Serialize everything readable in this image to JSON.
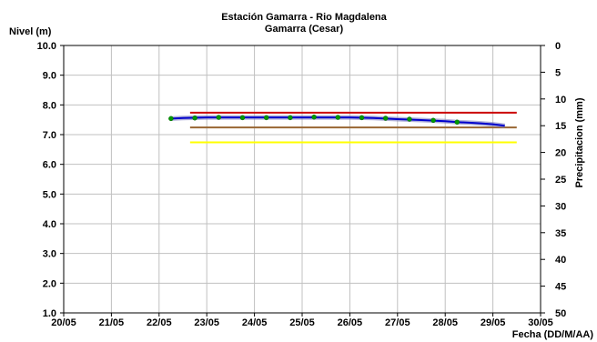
{
  "chart_data": {
    "type": "line",
    "title": "Estación Gamarra - Rio Magdalena",
    "subtitle": "Gamarra (Cesar)",
    "ylabel": "Nivel (m)",
    "y2label": "Precipitacion (mm)",
    "xlabel": "Fecha (DD/M/AA)",
    "x_ticks": [
      "20/05",
      "21/05",
      "22/05",
      "23/05",
      "24/05",
      "25/05",
      "26/05",
      "27/05",
      "28/05",
      "29/05",
      "30/05"
    ],
    "y_ticks": [
      "1.0",
      "2.0",
      "3.0",
      "4.0",
      "5.0",
      "6.0",
      "7.0",
      "8.0",
      "9.0",
      "10.0"
    ],
    "y2_ticks": [
      "0",
      "5",
      "10",
      "15",
      "20",
      "25",
      "30",
      "35",
      "40",
      "45",
      "50"
    ],
    "xlim": [
      0,
      10
    ],
    "ylim": [
      1.0,
      10.0
    ],
    "y2lim": [
      50,
      0
    ],
    "grid": true,
    "series": [
      {
        "kind": "observed_line",
        "color": "#0000cc",
        "x": [
          2.25,
          2.5,
          3.0,
          3.5,
          4.0,
          4.5,
          5.0,
          5.5,
          6.0,
          6.5,
          7.0,
          7.5,
          8.0,
          8.25,
          8.5,
          8.75,
          9.0,
          9.25
        ],
        "y": [
          7.54,
          7.56,
          7.58,
          7.58,
          7.58,
          7.58,
          7.58,
          7.58,
          7.58,
          7.56,
          7.52,
          7.49,
          7.45,
          7.42,
          7.4,
          7.38,
          7.35,
          7.3
        ]
      },
      {
        "kind": "points",
        "color": "#009900",
        "x": [
          2.25,
          2.75,
          3.25,
          3.75,
          4.25,
          4.75,
          5.25,
          5.75,
          6.25,
          6.75,
          7.25,
          7.75,
          8.25
        ],
        "y": [
          7.54,
          7.56,
          7.58,
          7.57,
          7.57,
          7.57,
          7.59,
          7.58,
          7.57,
          7.55,
          7.52,
          7.48,
          7.42
        ]
      },
      {
        "kind": "threshold",
        "color": "#cc0000",
        "x": [
          2.65,
          9.5
        ],
        "y": [
          7.74,
          7.74
        ]
      },
      {
        "kind": "threshold",
        "color": "#996633",
        "x": [
          2.65,
          9.5
        ],
        "y": [
          7.24,
          7.24
        ]
      },
      {
        "kind": "threshold",
        "color": "#ffff00",
        "x": [
          2.65,
          9.5
        ],
        "y": [
          6.74,
          6.74
        ]
      }
    ]
  }
}
